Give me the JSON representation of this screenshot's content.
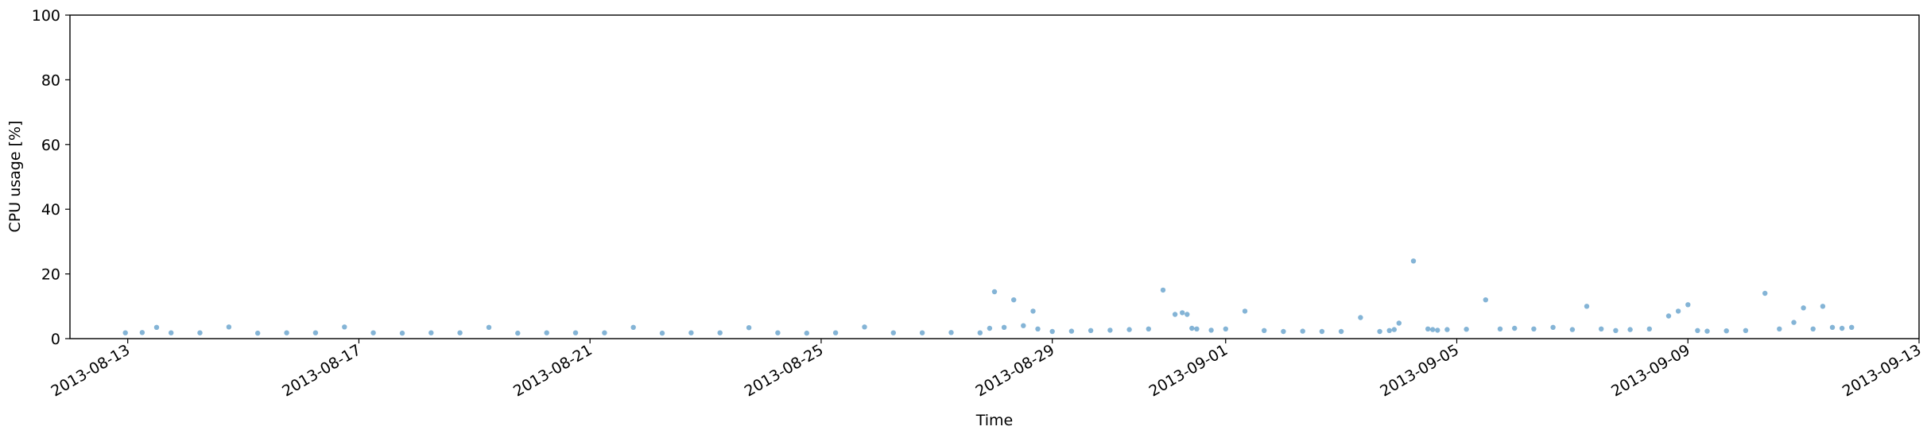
{
  "chart_data": {
    "type": "scatter",
    "title": "",
    "xlabel": "Time",
    "ylabel": "CPU usage [%]",
    "ylim": [
      0,
      100
    ],
    "xlim": [
      "2013-08-12",
      "2013-09-13"
    ],
    "yticks": [
      "0",
      "20",
      "40",
      "60",
      "80",
      "100"
    ],
    "xticks": [
      "2013-08-13",
      "2013-08-17",
      "2013-08-21",
      "2013-08-25",
      "2013-08-29",
      "2013-09-01",
      "2013-09-05",
      "2013-09-09",
      "2013-09-13"
    ],
    "grid": false,
    "legend": "none",
    "marker_color": "#1f77b4",
    "series": [
      {
        "x": [
          "2013-08-12 23:00",
          "2013-08-13 06:00",
          "2013-08-13 12:00",
          "2013-08-13 18:00",
          "2013-08-14 06:00",
          "2013-08-14 18:00",
          "2013-08-15 06:00",
          "2013-08-15 18:00",
          "2013-08-16 06:00",
          "2013-08-16 18:00",
          "2013-08-17 06:00",
          "2013-08-17 18:00",
          "2013-08-18 06:00",
          "2013-08-18 18:00",
          "2013-08-19 06:00",
          "2013-08-19 18:00",
          "2013-08-20 06:00",
          "2013-08-20 18:00",
          "2013-08-21 06:00",
          "2013-08-21 18:00",
          "2013-08-22 06:00",
          "2013-08-22 18:00",
          "2013-08-23 06:00",
          "2013-08-23 18:00",
          "2013-08-24 06:00",
          "2013-08-24 18:00",
          "2013-08-25 06:00",
          "2013-08-25 18:00",
          "2013-08-26 06:00",
          "2013-08-26 18:00",
          "2013-08-27 06:00",
          "2013-08-27 18:00",
          "2013-08-27 22:00",
          "2013-08-28 00:00",
          "2013-08-28 04:00",
          "2013-08-28 08:00",
          "2013-08-28 12:00",
          "2013-08-28 16:00",
          "2013-08-28 18:00",
          "2013-08-29 00:00",
          "2013-08-29 08:00",
          "2013-08-29 16:00",
          "2013-08-30 00:00",
          "2013-08-30 08:00",
          "2013-08-30 16:00",
          "2013-08-30 22:00",
          "2013-08-31 03:00",
          "2013-08-31 06:00",
          "2013-08-31 08:00",
          "2013-08-31 10:00",
          "2013-08-31 12:00",
          "2013-08-31 18:00",
          "2013-09-01 00:00",
          "2013-09-01 08:00",
          "2013-09-01 16:00",
          "2013-09-02 00:00",
          "2013-09-02 08:00",
          "2013-09-02 16:00",
          "2013-09-03 00:00",
          "2013-09-03 08:00",
          "2013-09-03 16:00",
          "2013-09-03 20:00",
          "2013-09-03 22:00",
          "2013-09-04 00:00",
          "2013-09-04 06:00",
          "2013-09-04 12:00",
          "2013-09-04 14:00",
          "2013-09-04 16:00",
          "2013-09-04 20:00",
          "2013-09-05 04:00",
          "2013-09-05 12:00",
          "2013-09-05 18:00",
          "2013-09-06 00:00",
          "2013-09-06 08:00",
          "2013-09-06 16:00",
          "2013-09-07 00:00",
          "2013-09-07 06:00",
          "2013-09-07 12:00",
          "2013-09-07 18:00",
          "2013-09-08 00:00",
          "2013-09-08 08:00",
          "2013-09-08 16:00",
          "2013-09-08 20:00",
          "2013-09-09 00:00",
          "2013-09-09 04:00",
          "2013-09-09 08:00",
          "2013-09-09 16:00",
          "2013-09-10 00:00",
          "2013-09-10 08:00",
          "2013-09-10 14:00",
          "2013-09-10 20:00",
          "2013-09-11 00:00",
          "2013-09-11 04:00",
          "2013-09-11 08:00",
          "2013-09-11 12:00",
          "2013-09-11 16:00",
          "2013-09-11 20:00"
        ],
        "y": [
          1.8,
          1.9,
          3.5,
          1.8,
          1.8,
          3.6,
          1.7,
          1.8,
          1.8,
          3.6,
          1.8,
          1.7,
          1.8,
          1.8,
          3.5,
          1.7,
          1.8,
          1.8,
          1.8,
          3.5,
          1.7,
          1.8,
          1.8,
          3.4,
          1.8,
          1.7,
          1.8,
          3.6,
          1.8,
          1.8,
          1.9,
          1.8,
          3.2,
          14.5,
          3.5,
          12.0,
          4.0,
          8.5,
          3.0,
          2.2,
          2.3,
          2.5,
          2.6,
          2.8,
          3.0,
          15.0,
          7.5,
          8.0,
          7.5,
          3.2,
          3.0,
          2.6,
          3.0,
          8.5,
          2.5,
          2.2,
          2.3,
          2.2,
          2.2,
          6.5,
          2.2,
          2.5,
          2.8,
          4.8,
          24.0,
          3.0,
          2.8,
          2.6,
          2.8,
          2.9,
          12.0,
          3.0,
          3.2,
          3.0,
          3.5,
          2.8,
          10.0,
          3.0,
          2.5,
          2.8,
          3.0,
          7.0,
          8.5,
          10.5,
          2.5,
          2.3,
          2.4,
          2.5,
          14.0,
          3.0,
          5.0,
          9.5,
          3.0,
          10.0,
          3.5,
          3.2,
          3.5
        ]
      }
    ]
  }
}
